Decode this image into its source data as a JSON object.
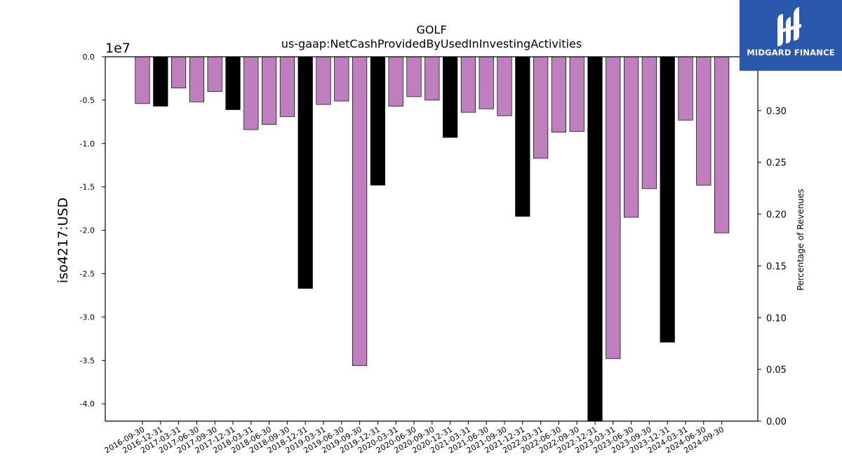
{
  "chart_data": {
    "type": "bar",
    "title": "GOLF",
    "subtitle": "us-gaap:NetCashProvidedByUsedInInvestingActivities",
    "ylabel": "iso4217:USD",
    "y2label": "Percentage of Revenues",
    "offset_label": "1e7",
    "ylim": [
      -4.2,
      0.0
    ],
    "y_unit_multiplier": 10000000,
    "y2lim": [
      0.0,
      0.352
    ],
    "y_ticks": [
      "0.0",
      "-0.5",
      "-1.0",
      "-1.5",
      "-2.0",
      "-2.5",
      "-3.0",
      "-3.5",
      "-4.0"
    ],
    "y2_ticks": [
      "0.30",
      "0.25",
      "0.20",
      "0.15",
      "0.10",
      "0.05",
      "0.00"
    ],
    "categories": [
      "2016-09-30",
      "2016-12-31",
      "2017-03-31",
      "2017-06-30",
      "2017-09-30",
      "2017-12-31",
      "2018-03-31",
      "2018-06-30",
      "2018-09-30",
      "2018-12-31",
      "2019-03-31",
      "2019-06-30",
      "2019-09-30",
      "2019-12-31",
      "2020-03-31",
      "2020-06-30",
      "2020-09-30",
      "2020-12-31",
      "2021-03-31",
      "2021-06-30",
      "2021-09-30",
      "2021-12-31",
      "2022-03-31",
      "2022-06-30",
      "2022-09-30",
      "2022-12-31",
      "2023-03-31",
      "2023-06-30",
      "2023-09-30",
      "2023-12-31",
      "2024-03-31",
      "2024-06-30",
      "2024-09-30"
    ],
    "values": [
      -0.54,
      -0.57,
      -0.36,
      -0.52,
      -0.4,
      -0.61,
      -0.84,
      -0.78,
      -0.69,
      -2.67,
      -0.55,
      -0.51,
      -3.56,
      -1.48,
      -0.57,
      -0.46,
      -0.5,
      -0.93,
      -0.64,
      -0.6,
      -0.68,
      -1.84,
      -1.17,
      -0.87,
      -0.86,
      -4.2,
      -3.48,
      -1.85,
      -1.52,
      -3.29,
      -0.73,
      -1.48,
      -2.03
    ],
    "annual_flags": [
      false,
      true,
      false,
      false,
      false,
      true,
      false,
      false,
      false,
      true,
      false,
      false,
      false,
      true,
      false,
      false,
      false,
      true,
      false,
      false,
      false,
      true,
      false,
      false,
      false,
      true,
      false,
      false,
      false,
      true,
      false,
      false,
      false
    ],
    "colors": {
      "quarterly": "#bf7fbf",
      "annual": "#000000",
      "edge": "#000000"
    },
    "grid": false,
    "legend": "none"
  },
  "logo": {
    "text": "MIDGARD FINANCE",
    "color": "#2a58ad"
  }
}
